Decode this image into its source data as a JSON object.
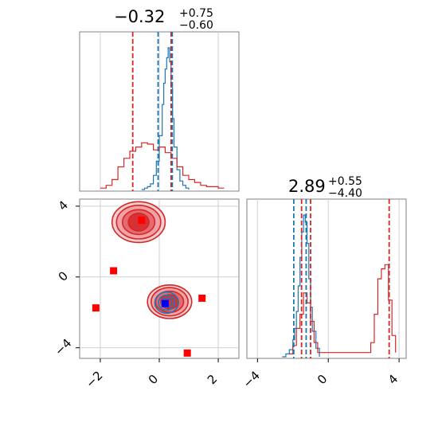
{
  "chart_data": [
    {
      "type": "histogram",
      "panel": "marginal-x",
      "title": {
        "value": "−0.32",
        "plus": "+0.75",
        "minus": "−0.60"
      },
      "xlim": [
        -2.7,
        2.7
      ],
      "grid": true,
      "series": [
        {
          "color": "#1f77b4",
          "x": [
            -0.6,
            -0.5,
            -0.4,
            -0.3,
            -0.2,
            -0.1,
            0.0,
            0.1,
            0.15,
            0.2,
            0.25,
            0.3,
            0.35,
            0.4,
            0.45,
            0.5,
            0.6,
            0.7,
            0.8,
            0.9,
            1.0
          ],
          "density": [
            0.0,
            0.01,
            0.02,
            0.04,
            0.1,
            0.2,
            0.38,
            0.6,
            0.75,
            0.85,
            0.93,
            1.0,
            0.9,
            0.72,
            0.5,
            0.3,
            0.14,
            0.06,
            0.03,
            0.01,
            0.0
          ]
        },
        {
          "color": "#d62728",
          "x": [
            -2.0,
            -1.8,
            -1.6,
            -1.4,
            -1.2,
            -1.0,
            -0.8,
            -0.6,
            -0.4,
            -0.2,
            0.0,
            0.2,
            0.4,
            0.6,
            0.8,
            1.0,
            1.2,
            1.4,
            1.6,
            1.8,
            2.0,
            2.2
          ],
          "density": [
            0.01,
            0.03,
            0.07,
            0.16,
            0.22,
            0.27,
            0.3,
            0.33,
            0.32,
            0.28,
            0.3,
            0.26,
            0.22,
            0.16,
            0.1,
            0.07,
            0.05,
            0.03,
            0.02,
            0.02,
            0.01,
            0.01
          ]
        }
      ],
      "vlines": [
        {
          "x": -0.9,
          "color": "#d62728"
        },
        {
          "x": 0.4,
          "color": "#d62728"
        },
        {
          "x": -0.04,
          "color": "#1f77b4"
        },
        {
          "x": 0.44,
          "color": "#1f77b4"
        }
      ]
    },
    {
      "type": "contour",
      "panel": "joint",
      "xlim": [
        -2.7,
        2.7
      ],
      "ylim": [
        -4.6,
        4.4
      ],
      "xticks": [
        -2,
        0,
        2
      ],
      "yticks": [
        4,
        0,
        -4
      ],
      "xtick_labels": [
        "−2",
        "0",
        "2"
      ],
      "ytick_labels": [
        "4",
        "0",
        "−4"
      ],
      "grid": true,
      "modes": [
        {
          "color": "#d62728",
          "cx": -0.7,
          "cy": 3.1,
          "rx": [
            1.8,
            1.5,
            1.1,
            0.7
          ],
          "ry": [
            1.15,
            0.95,
            0.7,
            0.5
          ]
        },
        {
          "color": "#d62728",
          "cx": 0.35,
          "cy": -1.4,
          "rx": [
            1.5,
            1.25,
            0.95,
            0.6
          ],
          "ry": [
            0.95,
            0.8,
            0.6,
            0.4
          ]
        },
        {
          "color": "#1f77b4",
          "cx": 0.25,
          "cy": -1.45,
          "rx": [
            0.8,
            0.55,
            0.35
          ],
          "ry": [
            0.6,
            0.42,
            0.26
          ]
        }
      ],
      "points": [
        {
          "x": -0.6,
          "y": 3.2,
          "color": "#ff0000"
        },
        {
          "x": -1.55,
          "y": 0.35,
          "color": "#ff0000"
        },
        {
          "x": -2.15,
          "y": -1.75,
          "color": "#ff0000"
        },
        {
          "x": 1.45,
          "y": -1.2,
          "color": "#ff0000"
        },
        {
          "x": 0.95,
          "y": -4.3,
          "color": "#ff0000"
        },
        {
          "x": 0.2,
          "y": -1.5,
          "color": "#0000ff"
        }
      ]
    },
    {
      "type": "histogram",
      "panel": "marginal-y",
      "title": {
        "value": "2.89",
        "plus": "+0.55",
        "minus": "−4.40"
      },
      "xlim": [
        -4.6,
        4.4
      ],
      "xticks": [
        -4,
        0,
        4
      ],
      "xtick_labels": [
        "−4",
        "0",
        "4"
      ],
      "grid": true,
      "series": [
        {
          "color": "#1f77b4",
          "x": [
            -2.6,
            -2.4,
            -2.2,
            -2.0,
            -1.9,
            -1.8,
            -1.7,
            -1.6,
            -1.5,
            -1.4,
            -1.3,
            -1.2,
            -1.1,
            -1.0,
            -0.9,
            -0.7,
            -0.5
          ],
          "density": [
            0.0,
            0.02,
            0.05,
            0.12,
            0.2,
            0.32,
            0.5,
            0.7,
            0.88,
            1.0,
            0.95,
            0.8,
            0.55,
            0.35,
            0.18,
            0.06,
            0.0
          ]
        },
        {
          "color": "#d62728",
          "x": [
            -2.2,
            -2.0,
            -1.8,
            -1.6,
            -1.4,
            -1.2,
            -1.0,
            -0.8,
            -0.6,
            2.4,
            2.6,
            2.8,
            3.0,
            3.2,
            3.4,
            3.6,
            3.8
          ],
          "density": [
            0.02,
            0.08,
            0.2,
            0.3,
            0.45,
            0.38,
            0.25,
            0.1,
            0.03,
            0.1,
            0.3,
            0.55,
            0.62,
            0.65,
            0.4,
            0.15,
            0.03
          ]
        }
      ],
      "vlines": [
        {
          "x": -1.51,
          "color": "#d62728"
        },
        {
          "x": -1.0,
          "color": "#d62728"
        },
        {
          "x": 3.44,
          "color": "#d62728"
        },
        {
          "x": -1.95,
          "color": "#1f77b4"
        },
        {
          "x": -1.25,
          "color": "#1f77b4"
        }
      ]
    }
  ]
}
